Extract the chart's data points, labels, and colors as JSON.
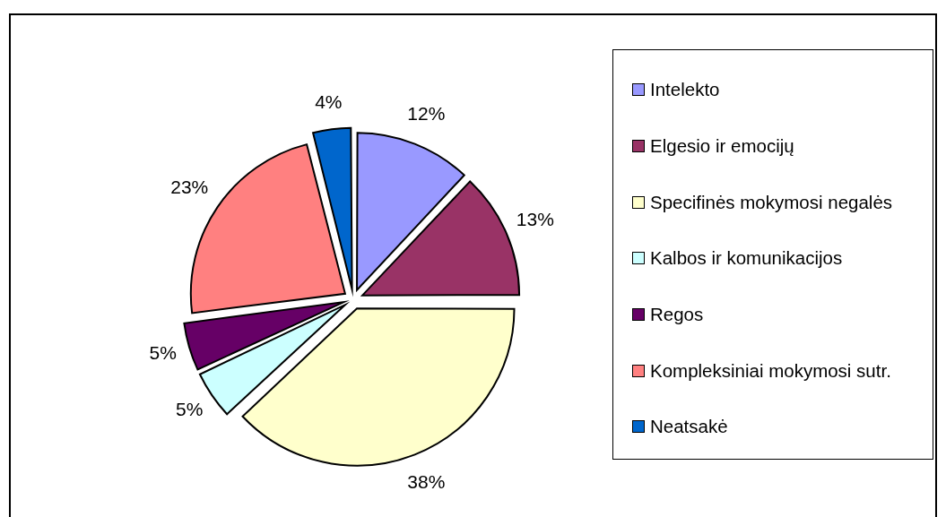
{
  "chart_data": {
    "type": "pie",
    "categories": [
      "Intelekto",
      "Elgesio ir emocijų",
      "Specifinės mokymosi negalės",
      "Kalbos ir komunikacijos",
      "Regos",
      "Kompleksiniai mokymosi sutr.",
      "Neatsakė"
    ],
    "values": [
      12,
      13,
      38,
      5,
      5,
      23,
      4
    ],
    "colors": [
      "#9999ff",
      "#993366",
      "#ffffcc",
      "#ccffff",
      "#660066",
      "#ff8080",
      "#0066cc"
    ],
    "value_labels": [
      "12%",
      "13%",
      "38%",
      "5%",
      "5%",
      "23%",
      "4%"
    ],
    "legend": "right"
  }
}
